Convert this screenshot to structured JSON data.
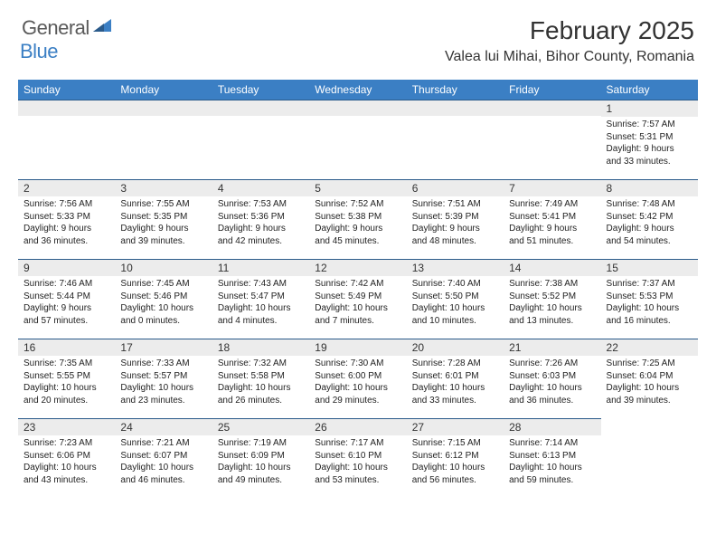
{
  "logo": {
    "general": "General",
    "blue": "Blue"
  },
  "header": {
    "month_title": "February 2025",
    "location": "Valea lui Mihai, Bihor County, Romania"
  },
  "colors": {
    "header_bg": "#3b7fc4",
    "header_text": "#ffffff",
    "daynum_bg": "#ececec",
    "border": "#2a5a8a",
    "text": "#333333"
  },
  "weekdays": [
    "Sunday",
    "Monday",
    "Tuesday",
    "Wednesday",
    "Thursday",
    "Friday",
    "Saturday"
  ],
  "weeks": [
    [
      null,
      null,
      null,
      null,
      null,
      null,
      {
        "n": "1",
        "sunrise": "Sunrise: 7:57 AM",
        "sunset": "Sunset: 5:31 PM",
        "d1": "Daylight: 9 hours",
        "d2": "and 33 minutes."
      }
    ],
    [
      {
        "n": "2",
        "sunrise": "Sunrise: 7:56 AM",
        "sunset": "Sunset: 5:33 PM",
        "d1": "Daylight: 9 hours",
        "d2": "and 36 minutes."
      },
      {
        "n": "3",
        "sunrise": "Sunrise: 7:55 AM",
        "sunset": "Sunset: 5:35 PM",
        "d1": "Daylight: 9 hours",
        "d2": "and 39 minutes."
      },
      {
        "n": "4",
        "sunrise": "Sunrise: 7:53 AM",
        "sunset": "Sunset: 5:36 PM",
        "d1": "Daylight: 9 hours",
        "d2": "and 42 minutes."
      },
      {
        "n": "5",
        "sunrise": "Sunrise: 7:52 AM",
        "sunset": "Sunset: 5:38 PM",
        "d1": "Daylight: 9 hours",
        "d2": "and 45 minutes."
      },
      {
        "n": "6",
        "sunrise": "Sunrise: 7:51 AM",
        "sunset": "Sunset: 5:39 PM",
        "d1": "Daylight: 9 hours",
        "d2": "and 48 minutes."
      },
      {
        "n": "7",
        "sunrise": "Sunrise: 7:49 AM",
        "sunset": "Sunset: 5:41 PM",
        "d1": "Daylight: 9 hours",
        "d2": "and 51 minutes."
      },
      {
        "n": "8",
        "sunrise": "Sunrise: 7:48 AM",
        "sunset": "Sunset: 5:42 PM",
        "d1": "Daylight: 9 hours",
        "d2": "and 54 minutes."
      }
    ],
    [
      {
        "n": "9",
        "sunrise": "Sunrise: 7:46 AM",
        "sunset": "Sunset: 5:44 PM",
        "d1": "Daylight: 9 hours",
        "d2": "and 57 minutes."
      },
      {
        "n": "10",
        "sunrise": "Sunrise: 7:45 AM",
        "sunset": "Sunset: 5:46 PM",
        "d1": "Daylight: 10 hours",
        "d2": "and 0 minutes."
      },
      {
        "n": "11",
        "sunrise": "Sunrise: 7:43 AM",
        "sunset": "Sunset: 5:47 PM",
        "d1": "Daylight: 10 hours",
        "d2": "and 4 minutes."
      },
      {
        "n": "12",
        "sunrise": "Sunrise: 7:42 AM",
        "sunset": "Sunset: 5:49 PM",
        "d1": "Daylight: 10 hours",
        "d2": "and 7 minutes."
      },
      {
        "n": "13",
        "sunrise": "Sunrise: 7:40 AM",
        "sunset": "Sunset: 5:50 PM",
        "d1": "Daylight: 10 hours",
        "d2": "and 10 minutes."
      },
      {
        "n": "14",
        "sunrise": "Sunrise: 7:38 AM",
        "sunset": "Sunset: 5:52 PM",
        "d1": "Daylight: 10 hours",
        "d2": "and 13 minutes."
      },
      {
        "n": "15",
        "sunrise": "Sunrise: 7:37 AM",
        "sunset": "Sunset: 5:53 PM",
        "d1": "Daylight: 10 hours",
        "d2": "and 16 minutes."
      }
    ],
    [
      {
        "n": "16",
        "sunrise": "Sunrise: 7:35 AM",
        "sunset": "Sunset: 5:55 PM",
        "d1": "Daylight: 10 hours",
        "d2": "and 20 minutes."
      },
      {
        "n": "17",
        "sunrise": "Sunrise: 7:33 AM",
        "sunset": "Sunset: 5:57 PM",
        "d1": "Daylight: 10 hours",
        "d2": "and 23 minutes."
      },
      {
        "n": "18",
        "sunrise": "Sunrise: 7:32 AM",
        "sunset": "Sunset: 5:58 PM",
        "d1": "Daylight: 10 hours",
        "d2": "and 26 minutes."
      },
      {
        "n": "19",
        "sunrise": "Sunrise: 7:30 AM",
        "sunset": "Sunset: 6:00 PM",
        "d1": "Daylight: 10 hours",
        "d2": "and 29 minutes."
      },
      {
        "n": "20",
        "sunrise": "Sunrise: 7:28 AM",
        "sunset": "Sunset: 6:01 PM",
        "d1": "Daylight: 10 hours",
        "d2": "and 33 minutes."
      },
      {
        "n": "21",
        "sunrise": "Sunrise: 7:26 AM",
        "sunset": "Sunset: 6:03 PM",
        "d1": "Daylight: 10 hours",
        "d2": "and 36 minutes."
      },
      {
        "n": "22",
        "sunrise": "Sunrise: 7:25 AM",
        "sunset": "Sunset: 6:04 PM",
        "d1": "Daylight: 10 hours",
        "d2": "and 39 minutes."
      }
    ],
    [
      {
        "n": "23",
        "sunrise": "Sunrise: 7:23 AM",
        "sunset": "Sunset: 6:06 PM",
        "d1": "Daylight: 10 hours",
        "d2": "and 43 minutes."
      },
      {
        "n": "24",
        "sunrise": "Sunrise: 7:21 AM",
        "sunset": "Sunset: 6:07 PM",
        "d1": "Daylight: 10 hours",
        "d2": "and 46 minutes."
      },
      {
        "n": "25",
        "sunrise": "Sunrise: 7:19 AM",
        "sunset": "Sunset: 6:09 PM",
        "d1": "Daylight: 10 hours",
        "d2": "and 49 minutes."
      },
      {
        "n": "26",
        "sunrise": "Sunrise: 7:17 AM",
        "sunset": "Sunset: 6:10 PM",
        "d1": "Daylight: 10 hours",
        "d2": "and 53 minutes."
      },
      {
        "n": "27",
        "sunrise": "Sunrise: 7:15 AM",
        "sunset": "Sunset: 6:12 PM",
        "d1": "Daylight: 10 hours",
        "d2": "and 56 minutes."
      },
      {
        "n": "28",
        "sunrise": "Sunrise: 7:14 AM",
        "sunset": "Sunset: 6:13 PM",
        "d1": "Daylight: 10 hours",
        "d2": "and 59 minutes."
      },
      null
    ]
  ]
}
